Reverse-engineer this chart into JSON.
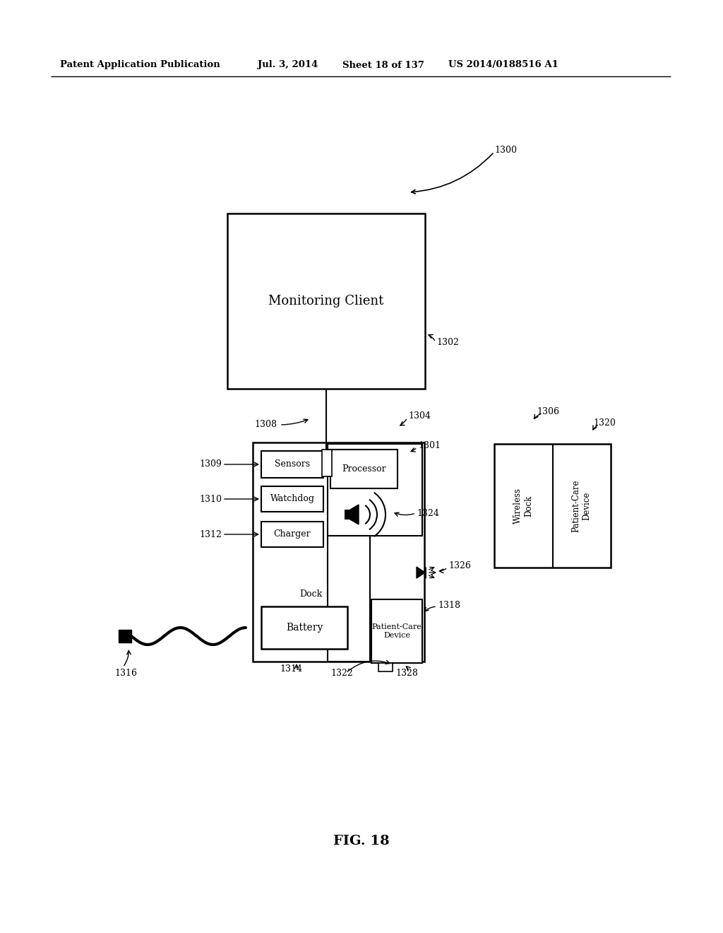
{
  "bg_color": "#ffffff",
  "header_text": "Patent Application Publication",
  "header_date": "Jul. 3, 2014",
  "header_sheet": "Sheet 18 of 137",
  "header_patent": "US 2014/0188516 A1",
  "fig_label": "FIG. 18",
  "label_1300": "1300",
  "label_1301": "1301",
  "label_1302": "1302",
  "label_1304": "1304",
  "label_1306": "1306",
  "label_1308": "1308",
  "label_1309": "1309",
  "label_1310": "1310",
  "label_1312": "1312",
  "label_1314": "1314",
  "label_1316": "1316",
  "label_1318": "1318",
  "label_1320": "1320",
  "label_1322": "1322",
  "label_1324": "1324",
  "label_1326": "1326",
  "label_1328": "1328",
  "monitoring_client": "Monitoring Client",
  "sensors": "Sensors",
  "watchdog": "Watchdog",
  "charger": "Charger",
  "dock_text": "Dock",
  "battery": "Battery",
  "processor": "Processor",
  "patient_care_device": "Patient-Care\nDevice",
  "wireless_dock_text": "Wireless\nDock",
  "patient_care_device2": "Patient-Care\nDevice"
}
